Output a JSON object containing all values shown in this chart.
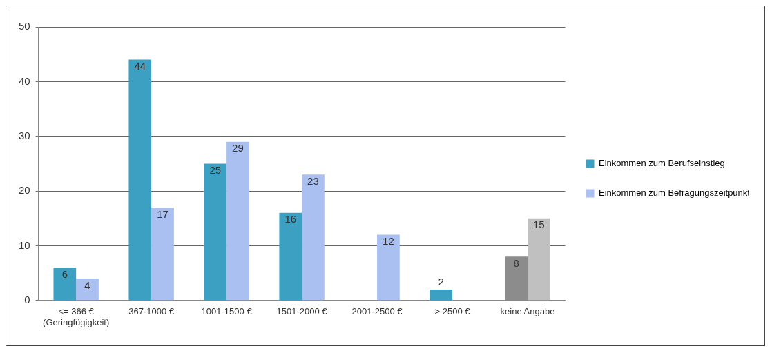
{
  "chart_data": {
    "type": "bar",
    "categories": [
      "<= 366 €\n(Geringfügigkeit)",
      "367-1000 €",
      "1001-1500 €",
      "1501-2000 €",
      "2001-2500 €",
      "> 2500 €",
      "keine Angabe"
    ],
    "series": [
      {
        "name": "Einkommen zum Berufseinstieg",
        "color": "#3ca0c2",
        "colors": [
          "#3ca0c2",
          "#3ca0c2",
          "#3ca0c2",
          "#3ca0c2",
          "#3ca0c2",
          "#3ca0c2",
          "#8c8c8c"
        ],
        "values": [
          6,
          44,
          25,
          16,
          null,
          2,
          8
        ]
      },
      {
        "name": "Einkommen zum Befragungszeitpunkt",
        "color": "#a9c0f0",
        "colors": [
          "#a9c0f0",
          "#a9c0f0",
          "#a9c0f0",
          "#a9c0f0",
          "#a9c0f0",
          "#a9c0f0",
          "#c0c0c0"
        ],
        "values": [
          4,
          17,
          29,
          23,
          12,
          null,
          15
        ]
      }
    ],
    "ylim": [
      0,
      50
    ],
    "yticks": [
      0,
      10,
      20,
      30,
      40,
      50
    ],
    "grid": "y",
    "legend": "right",
    "data_labels": true
  }
}
